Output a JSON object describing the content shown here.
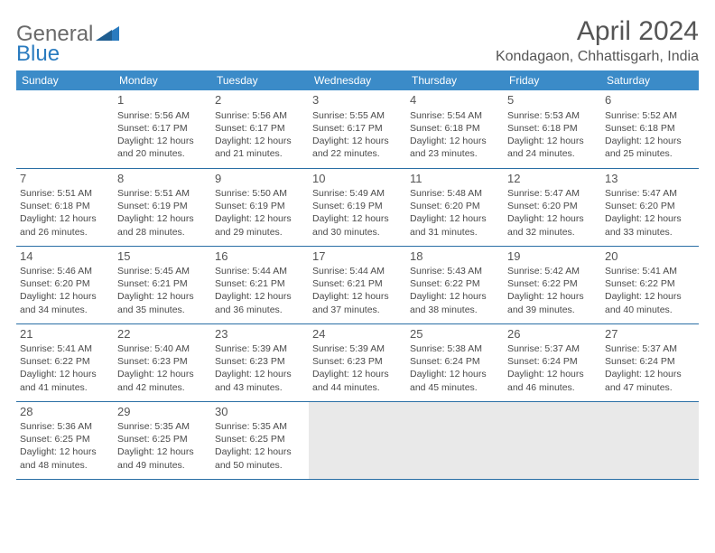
{
  "brand": {
    "text1": "General",
    "text2": "Blue",
    "logo_color": "#2a7bbf"
  },
  "title": "April 2024",
  "location": "Kondagaon, Chhattisgarh, India",
  "colors": {
    "header_bg": "#3b8bc8",
    "header_text": "#ffffff",
    "row_border": "#2a6fa5",
    "body_text": "#4a4a4a",
    "filler_bg": "#e9e9e9",
    "page_bg": "#ffffff"
  },
  "typography": {
    "month_title_pt": 30,
    "location_pt": 16,
    "day_header_pt": 12,
    "daynum_pt": 13,
    "cell_text_pt": 10.5
  },
  "day_headers": [
    "Sunday",
    "Monday",
    "Tuesday",
    "Wednesday",
    "Thursday",
    "Friday",
    "Saturday"
  ],
  "grid": [
    [
      {
        "blank": true
      },
      {
        "n": "1",
        "sr": "5:56 AM",
        "ss": "6:17 PM",
        "dl": "12 hours and 20 minutes."
      },
      {
        "n": "2",
        "sr": "5:56 AM",
        "ss": "6:17 PM",
        "dl": "12 hours and 21 minutes."
      },
      {
        "n": "3",
        "sr": "5:55 AM",
        "ss": "6:17 PM",
        "dl": "12 hours and 22 minutes."
      },
      {
        "n": "4",
        "sr": "5:54 AM",
        "ss": "6:18 PM",
        "dl": "12 hours and 23 minutes."
      },
      {
        "n": "5",
        "sr": "5:53 AM",
        "ss": "6:18 PM",
        "dl": "12 hours and 24 minutes."
      },
      {
        "n": "6",
        "sr": "5:52 AM",
        "ss": "6:18 PM",
        "dl": "12 hours and 25 minutes."
      }
    ],
    [
      {
        "n": "7",
        "sr": "5:51 AM",
        "ss": "6:18 PM",
        "dl": "12 hours and 26 minutes."
      },
      {
        "n": "8",
        "sr": "5:51 AM",
        "ss": "6:19 PM",
        "dl": "12 hours and 28 minutes."
      },
      {
        "n": "9",
        "sr": "5:50 AM",
        "ss": "6:19 PM",
        "dl": "12 hours and 29 minutes."
      },
      {
        "n": "10",
        "sr": "5:49 AM",
        "ss": "6:19 PM",
        "dl": "12 hours and 30 minutes."
      },
      {
        "n": "11",
        "sr": "5:48 AM",
        "ss": "6:20 PM",
        "dl": "12 hours and 31 minutes."
      },
      {
        "n": "12",
        "sr": "5:47 AM",
        "ss": "6:20 PM",
        "dl": "12 hours and 32 minutes."
      },
      {
        "n": "13",
        "sr": "5:47 AM",
        "ss": "6:20 PM",
        "dl": "12 hours and 33 minutes."
      }
    ],
    [
      {
        "n": "14",
        "sr": "5:46 AM",
        "ss": "6:20 PM",
        "dl": "12 hours and 34 minutes."
      },
      {
        "n": "15",
        "sr": "5:45 AM",
        "ss": "6:21 PM",
        "dl": "12 hours and 35 minutes."
      },
      {
        "n": "16",
        "sr": "5:44 AM",
        "ss": "6:21 PM",
        "dl": "12 hours and 36 minutes."
      },
      {
        "n": "17",
        "sr": "5:44 AM",
        "ss": "6:21 PM",
        "dl": "12 hours and 37 minutes."
      },
      {
        "n": "18",
        "sr": "5:43 AM",
        "ss": "6:22 PM",
        "dl": "12 hours and 38 minutes."
      },
      {
        "n": "19",
        "sr": "5:42 AM",
        "ss": "6:22 PM",
        "dl": "12 hours and 39 minutes."
      },
      {
        "n": "20",
        "sr": "5:41 AM",
        "ss": "6:22 PM",
        "dl": "12 hours and 40 minutes."
      }
    ],
    [
      {
        "n": "21",
        "sr": "5:41 AM",
        "ss": "6:22 PM",
        "dl": "12 hours and 41 minutes."
      },
      {
        "n": "22",
        "sr": "5:40 AM",
        "ss": "6:23 PM",
        "dl": "12 hours and 42 minutes."
      },
      {
        "n": "23",
        "sr": "5:39 AM",
        "ss": "6:23 PM",
        "dl": "12 hours and 43 minutes."
      },
      {
        "n": "24",
        "sr": "5:39 AM",
        "ss": "6:23 PM",
        "dl": "12 hours and 44 minutes."
      },
      {
        "n": "25",
        "sr": "5:38 AM",
        "ss": "6:24 PM",
        "dl": "12 hours and 45 minutes."
      },
      {
        "n": "26",
        "sr": "5:37 AM",
        "ss": "6:24 PM",
        "dl": "12 hours and 46 minutes."
      },
      {
        "n": "27",
        "sr": "5:37 AM",
        "ss": "6:24 PM",
        "dl": "12 hours and 47 minutes."
      }
    ],
    [
      {
        "n": "28",
        "sr": "5:36 AM",
        "ss": "6:25 PM",
        "dl": "12 hours and 48 minutes."
      },
      {
        "n": "29",
        "sr": "5:35 AM",
        "ss": "6:25 PM",
        "dl": "12 hours and 49 minutes."
      },
      {
        "n": "30",
        "sr": "5:35 AM",
        "ss": "6:25 PM",
        "dl": "12 hours and 50 minutes."
      },
      {
        "filler": true
      },
      {
        "filler": true
      },
      {
        "filler": true
      },
      {
        "filler": true
      }
    ]
  ],
  "labels": {
    "sunrise": "Sunrise:",
    "sunset": "Sunset:",
    "daylight": "Daylight:"
  }
}
